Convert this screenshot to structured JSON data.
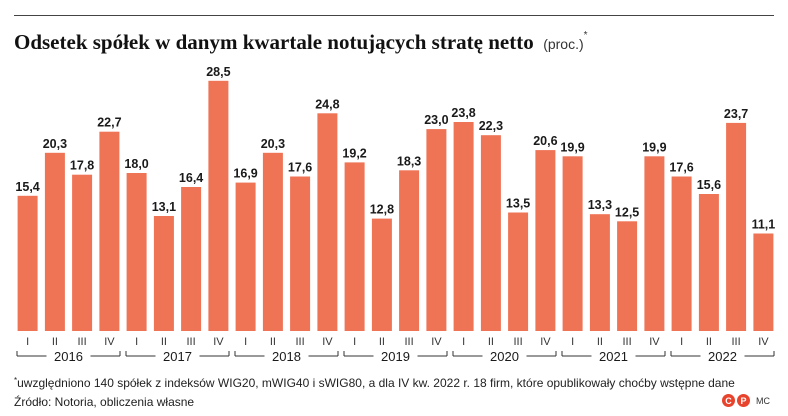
{
  "title": "Odsetek spółek w danym kwartale notujących stratę netto",
  "unit": "(proc.)",
  "unit_mark": "*",
  "footnote_mark": "*",
  "footnote": "uwzględniono 140 spółek z indeksów WIG20, mWIG40 i sWIG80, a dla IV kw. 2022 r. 18 firm, które opublikowały choćby wstępne dane",
  "source": "Źródło: Notoria, obliczenia własne",
  "credit": {
    "logo_letters": [
      "C",
      "P"
    ],
    "initials": "MC"
  },
  "colors": {
    "bar": "#ef7355",
    "axis": "#333333",
    "text": "#1a1a1a"
  },
  "chart_data": {
    "type": "bar",
    "title": "Odsetek spółek w danym kwartale notujących stratę netto",
    "ylabel": "",
    "xlabel": "",
    "ylim": [
      0,
      30
    ],
    "grid": false,
    "legend": "none",
    "years": [
      "2016",
      "2017",
      "2018",
      "2019",
      "2020",
      "2021",
      "2022"
    ],
    "quarters": [
      "I",
      "II",
      "III",
      "IV"
    ],
    "categories": [
      "I 2016",
      "II 2016",
      "III 2016",
      "IV 2016",
      "I 2017",
      "II 2017",
      "III 2017",
      "IV 2017",
      "I 2018",
      "II 2018",
      "III 2018",
      "IV 2018",
      "I 2019",
      "II 2019",
      "III 2019",
      "IV 2019",
      "I 2020",
      "II 2020",
      "III 2020",
      "IV 2020",
      "I 2021",
      "II 2021",
      "III 2021",
      "IV 2021",
      "I 2022",
      "II 2022",
      "III 2022",
      "IV 2022"
    ],
    "values": [
      15.4,
      20.3,
      17.8,
      22.7,
      18.0,
      13.1,
      16.4,
      28.5,
      16.9,
      20.3,
      17.6,
      24.8,
      19.2,
      12.8,
      18.3,
      23.0,
      23.8,
      22.3,
      13.5,
      20.6,
      19.9,
      13.3,
      12.5,
      19.9,
      17.6,
      15.6,
      23.7,
      11.1
    ],
    "labels": [
      "15,4",
      "20,3",
      "17,8",
      "22,7",
      "18,0",
      "13,1",
      "16,4",
      "28,5",
      "16,9",
      "20,3",
      "17,6",
      "24,8",
      "19,2",
      "12,8",
      "18,3",
      "23,0",
      "23,8",
      "22,3",
      "13,5",
      "20,6",
      "19,9",
      "13,3",
      "12,5",
      "19,9",
      "17,6",
      "15,6",
      "23,7",
      "11,1"
    ]
  }
}
